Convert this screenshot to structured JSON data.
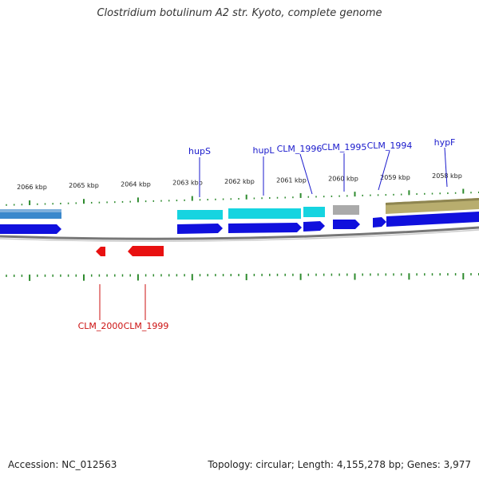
{
  "title": "Clostridium botulinum A2 str. Kyoto, complete genome",
  "accession": "Accession: NC_012563",
  "summary": "Topology: circular; Length: 4,155,278 bp; Genes: 3,977",
  "ruler": {
    "labels": [
      "2066 kbp",
      "2065 kbp",
      "2064 kbp",
      "2063 kbp",
      "2062 kbp",
      "2061 kbp",
      "2060 kbp",
      "2059 kbp",
      "2058 kbp"
    ]
  },
  "colors": {
    "tick": "#2e8b2e",
    "label_forward": "#1a1acc",
    "label_reverse": "#cc1111",
    "cds_forward": "#1010dd",
    "cds_reverse": "#e81010",
    "backbone": "#888888",
    "feature_blue": "#3a88cc",
    "feature_cyan": "#16d4e0",
    "feature_gray": "#aaaaaa",
    "feature_olive": "#b8ad6e"
  },
  "gene_labels": [
    {
      "name": "hupS",
      "strand": "forward"
    },
    {
      "name": "hupL",
      "strand": "forward"
    },
    {
      "name": "CLM_1996",
      "strand": "forward"
    },
    {
      "name": "CLM_1995",
      "strand": "forward"
    },
    {
      "name": "CLM_1994",
      "strand": "forward"
    },
    {
      "name": "hypF",
      "strand": "forward"
    },
    {
      "name": "CLM_2000",
      "strand": "reverse"
    },
    {
      "name": "CLM_1999",
      "strand": "reverse"
    }
  ]
}
